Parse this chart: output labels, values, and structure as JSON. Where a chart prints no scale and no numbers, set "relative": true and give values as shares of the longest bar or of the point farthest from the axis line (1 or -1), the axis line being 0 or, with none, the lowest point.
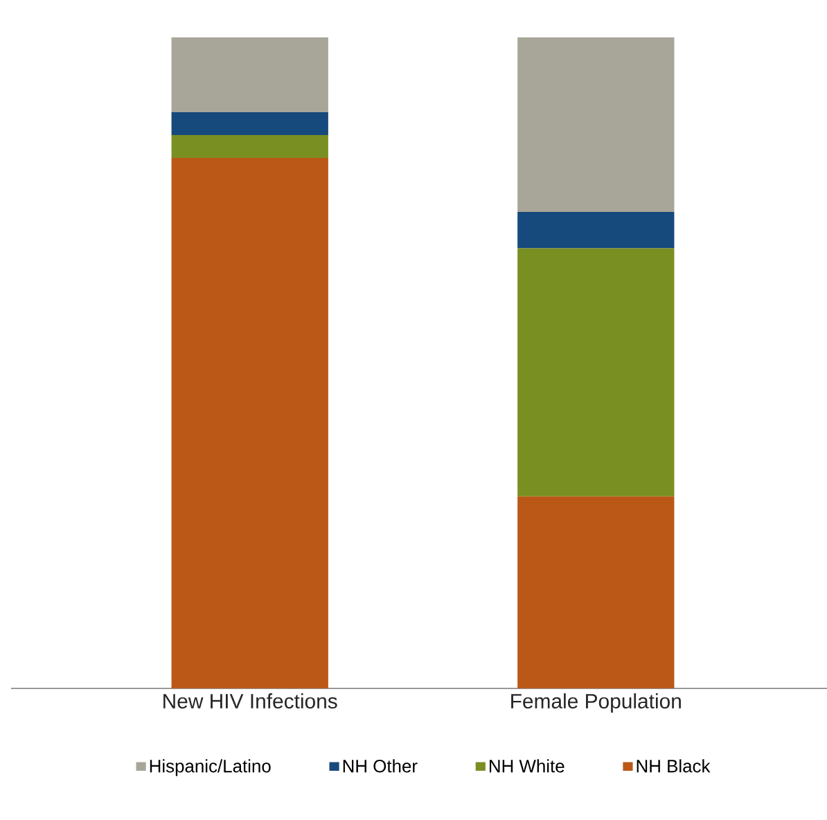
{
  "chart_data": {
    "type": "bar",
    "stacked": true,
    "relative": true,
    "legend": "bottom",
    "categories": [
      "New HIV Infections",
      "Female Population"
    ],
    "series": [
      {
        "name": "NH Black",
        "color": "#bb5817",
        "values": [
          0.815,
          0.295
        ]
      },
      {
        "name": "NH White",
        "color": "#7a8f21",
        "values": [
          0.035,
          0.381
        ]
      },
      {
        "name": "NH Other",
        "color": "#164a7c",
        "values": [
          0.035,
          0.056
        ]
      },
      {
        "name": "Hispanic/Latino",
        "color": "#a8a698",
        "values": [
          0.115,
          0.268
        ]
      }
    ]
  }
}
